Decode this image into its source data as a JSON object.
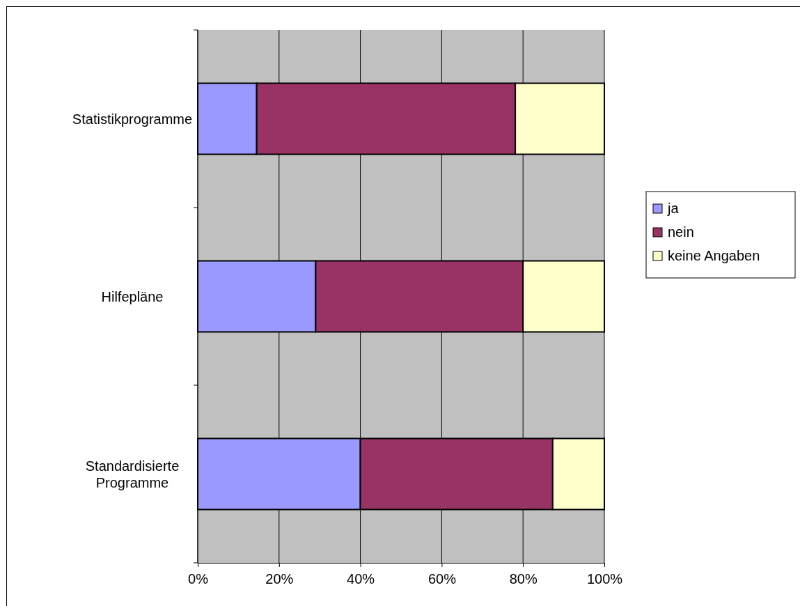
{
  "chart_data": {
    "type": "bar",
    "orientation": "horizontal",
    "stacked": true,
    "categories": [
      "Statistikprogramme",
      "Hilfepläne",
      "Standardisierte Programme"
    ],
    "series": [
      {
        "name": "ja",
        "color": "#9999ff",
        "values": [
          14.5,
          29,
          40
        ]
      },
      {
        "name": "nein",
        "color": "#993366",
        "values": [
          63.6,
          51,
          47.3
        ]
      },
      {
        "name": "keine Angaben",
        "color": "#ffffcc",
        "values": [
          21.9,
          20,
          12.7
        ]
      }
    ],
    "xlim": [
      0,
      100
    ],
    "xticks": [
      {
        "value": 0,
        "label": "0%"
      },
      {
        "value": 20,
        "label": "20%"
      },
      {
        "value": 40,
        "label": "40%"
      },
      {
        "value": 60,
        "label": "60%"
      },
      {
        "value": 80,
        "label": "80%"
      },
      {
        "value": 100,
        "label": "100%"
      }
    ],
    "grid": "x",
    "legend": "right"
  }
}
